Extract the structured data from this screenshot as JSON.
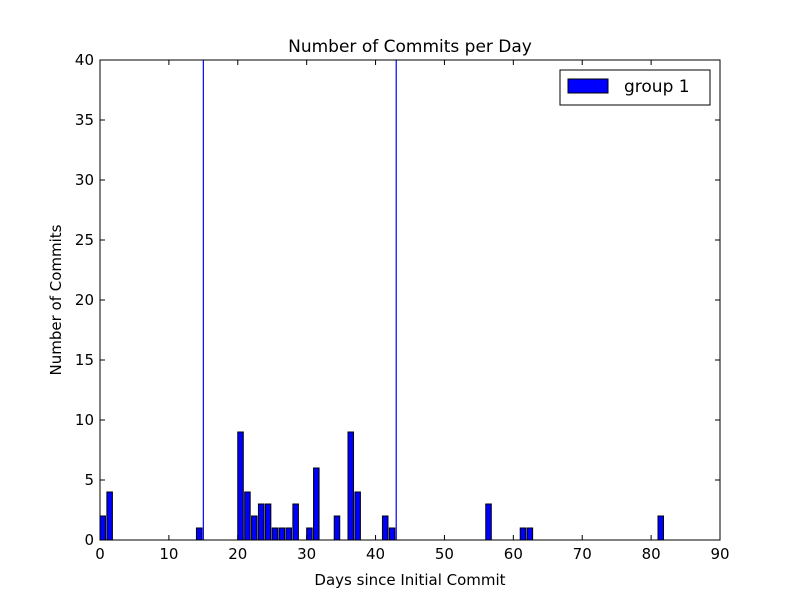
{
  "chart_data": {
    "type": "bar",
    "title": "Number of Commits per Day",
    "xlabel": "Days since Initial Commit",
    "ylabel": "Number of Commits",
    "xlim": [
      0,
      90
    ],
    "ylim": [
      0,
      40
    ],
    "xticks": [
      0,
      10,
      20,
      30,
      40,
      50,
      60,
      70,
      80,
      90
    ],
    "yticks": [
      0,
      5,
      10,
      15,
      20,
      25,
      30,
      35,
      40
    ],
    "grid": false,
    "legend_position": "top-right",
    "series": [
      {
        "name": "group 1",
        "color": "#0000ff",
        "points": [
          {
            "x": 0,
            "y": 2
          },
          {
            "x": 1,
            "y": 4
          },
          {
            "x": 14,
            "y": 1
          },
          {
            "x": 20,
            "y": 9
          },
          {
            "x": 21,
            "y": 4
          },
          {
            "x": 22,
            "y": 2
          },
          {
            "x": 23,
            "y": 3
          },
          {
            "x": 24,
            "y": 3
          },
          {
            "x": 25,
            "y": 1
          },
          {
            "x": 26,
            "y": 1
          },
          {
            "x": 27,
            "y": 1
          },
          {
            "x": 28,
            "y": 3
          },
          {
            "x": 30,
            "y": 1
          },
          {
            "x": 31,
            "y": 6
          },
          {
            "x": 34,
            "y": 2
          },
          {
            "x": 36,
            "y": 9
          },
          {
            "x": 37,
            "y": 4
          },
          {
            "x": 41,
            "y": 2
          },
          {
            "x": 42,
            "y": 1
          },
          {
            "x": 56,
            "y": 3
          },
          {
            "x": 61,
            "y": 1
          },
          {
            "x": 62,
            "y": 1
          },
          {
            "x": 81,
            "y": 2
          }
        ]
      }
    ],
    "vertical_lines": [
      {
        "x": 15,
        "color": "#0000ff"
      },
      {
        "x": 43,
        "color": "#0000ff"
      }
    ]
  }
}
